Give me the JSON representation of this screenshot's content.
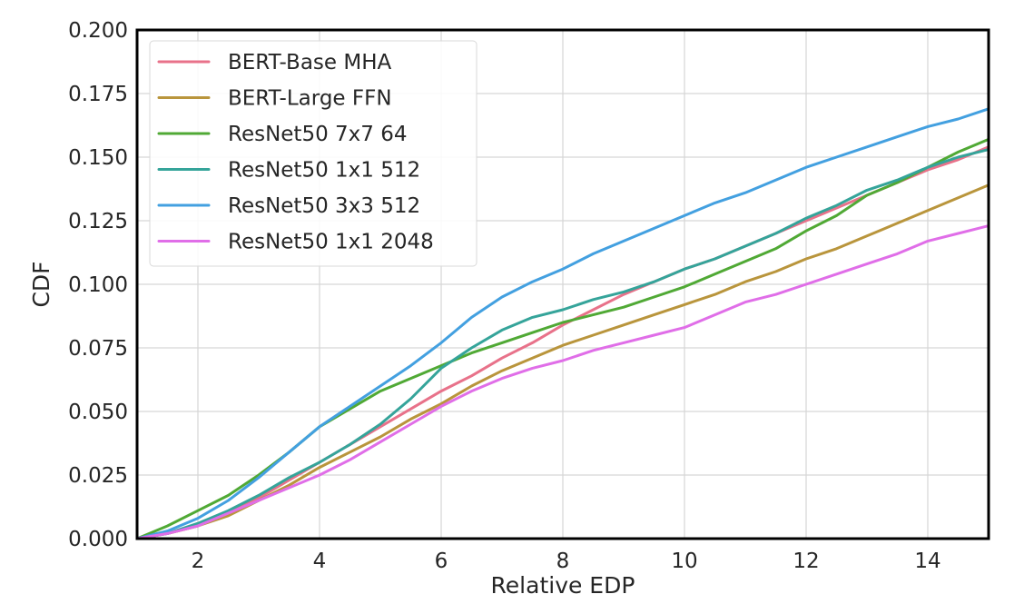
{
  "chart_data": {
    "type": "line",
    "title": "",
    "xlabel": "Relative EDP",
    "ylabel": "CDF",
    "xlim": [
      1,
      15
    ],
    "ylim": [
      0,
      0.2
    ],
    "grid": true,
    "legend_position": "top-left",
    "x_ticks": [
      2,
      4,
      6,
      8,
      10,
      12,
      14
    ],
    "x_tick_labels": [
      "2",
      "4",
      "6",
      "8",
      "10",
      "12",
      "14"
    ],
    "y_ticks": [
      0,
      0.025,
      0.05,
      0.075,
      0.1,
      0.125,
      0.15,
      0.175,
      0.2
    ],
    "y_tick_labels": [
      "0.000",
      "0.025",
      "0.050",
      "0.075",
      "0.100",
      "0.125",
      "0.150",
      "0.175",
      "0.200"
    ],
    "x": [
      1,
      1.5,
      2,
      2.5,
      3,
      3.5,
      4,
      4.5,
      5,
      5.5,
      6,
      6.5,
      7,
      7.5,
      8,
      8.5,
      9,
      9.5,
      10,
      10.5,
      11,
      11.5,
      12,
      12.5,
      13,
      13.5,
      14,
      14.5,
      15
    ],
    "series": [
      {
        "name": "BERT-Base MHA",
        "color": "#e8728a",
        "values": [
          0,
          0.002,
          0.005,
          0.01,
          0.016,
          0.023,
          0.03,
          0.037,
          0.044,
          0.051,
          0.058,
          0.064,
          0.071,
          0.077,
          0.084,
          0.09,
          0.096,
          0.101,
          0.106,
          0.11,
          0.115,
          0.12,
          0.125,
          0.13,
          0.135,
          0.14,
          0.145,
          0.149,
          0.154
        ]
      },
      {
        "name": "BERT-Large FFN",
        "color": "#b9953c",
        "values": [
          0,
          0.002,
          0.005,
          0.009,
          0.015,
          0.021,
          0.028,
          0.034,
          0.04,
          0.047,
          0.053,
          0.06,
          0.066,
          0.071,
          0.076,
          0.08,
          0.084,
          0.088,
          0.092,
          0.096,
          0.101,
          0.105,
          0.11,
          0.114,
          0.119,
          0.124,
          0.129,
          0.134,
          0.139
        ]
      },
      {
        "name": "ResNet50 7x7 64",
        "color": "#50a935",
        "values": [
          0,
          0.005,
          0.011,
          0.017,
          0.025,
          0.034,
          0.044,
          0.051,
          0.058,
          0.063,
          0.068,
          0.073,
          0.077,
          0.081,
          0.085,
          0.088,
          0.091,
          0.095,
          0.099,
          0.104,
          0.109,
          0.114,
          0.121,
          0.127,
          0.135,
          0.14,
          0.146,
          0.152,
          0.157
        ]
      },
      {
        "name": "ResNet50 1x1 512",
        "color": "#35a49a",
        "values": [
          0,
          0.002,
          0.006,
          0.011,
          0.017,
          0.024,
          0.03,
          0.037,
          0.045,
          0.055,
          0.067,
          0.075,
          0.082,
          0.087,
          0.09,
          0.094,
          0.097,
          0.101,
          0.106,
          0.11,
          0.115,
          0.12,
          0.126,
          0.131,
          0.137,
          0.141,
          0.146,
          0.15,
          0.153
        ]
      },
      {
        "name": "ResNet50 3x3 512",
        "color": "#43a0e0",
        "values": [
          0,
          0.003,
          0.008,
          0.015,
          0.024,
          0.034,
          0.044,
          0.052,
          0.06,
          0.068,
          0.077,
          0.087,
          0.095,
          0.101,
          0.106,
          0.112,
          0.117,
          0.122,
          0.127,
          0.132,
          0.136,
          0.141,
          0.146,
          0.15,
          0.154,
          0.158,
          0.162,
          0.165,
          0.169
        ]
      },
      {
        "name": "ResNet50 1x1 2048",
        "color": "#e06ee8",
        "values": [
          0,
          0.002,
          0.005,
          0.01,
          0.015,
          0.02,
          0.025,
          0.031,
          0.038,
          0.045,
          0.052,
          0.058,
          0.063,
          0.067,
          0.07,
          0.074,
          0.077,
          0.08,
          0.083,
          0.088,
          0.093,
          0.096,
          0.1,
          0.104,
          0.108,
          0.112,
          0.117,
          0.12,
          0.123
        ]
      }
    ]
  }
}
